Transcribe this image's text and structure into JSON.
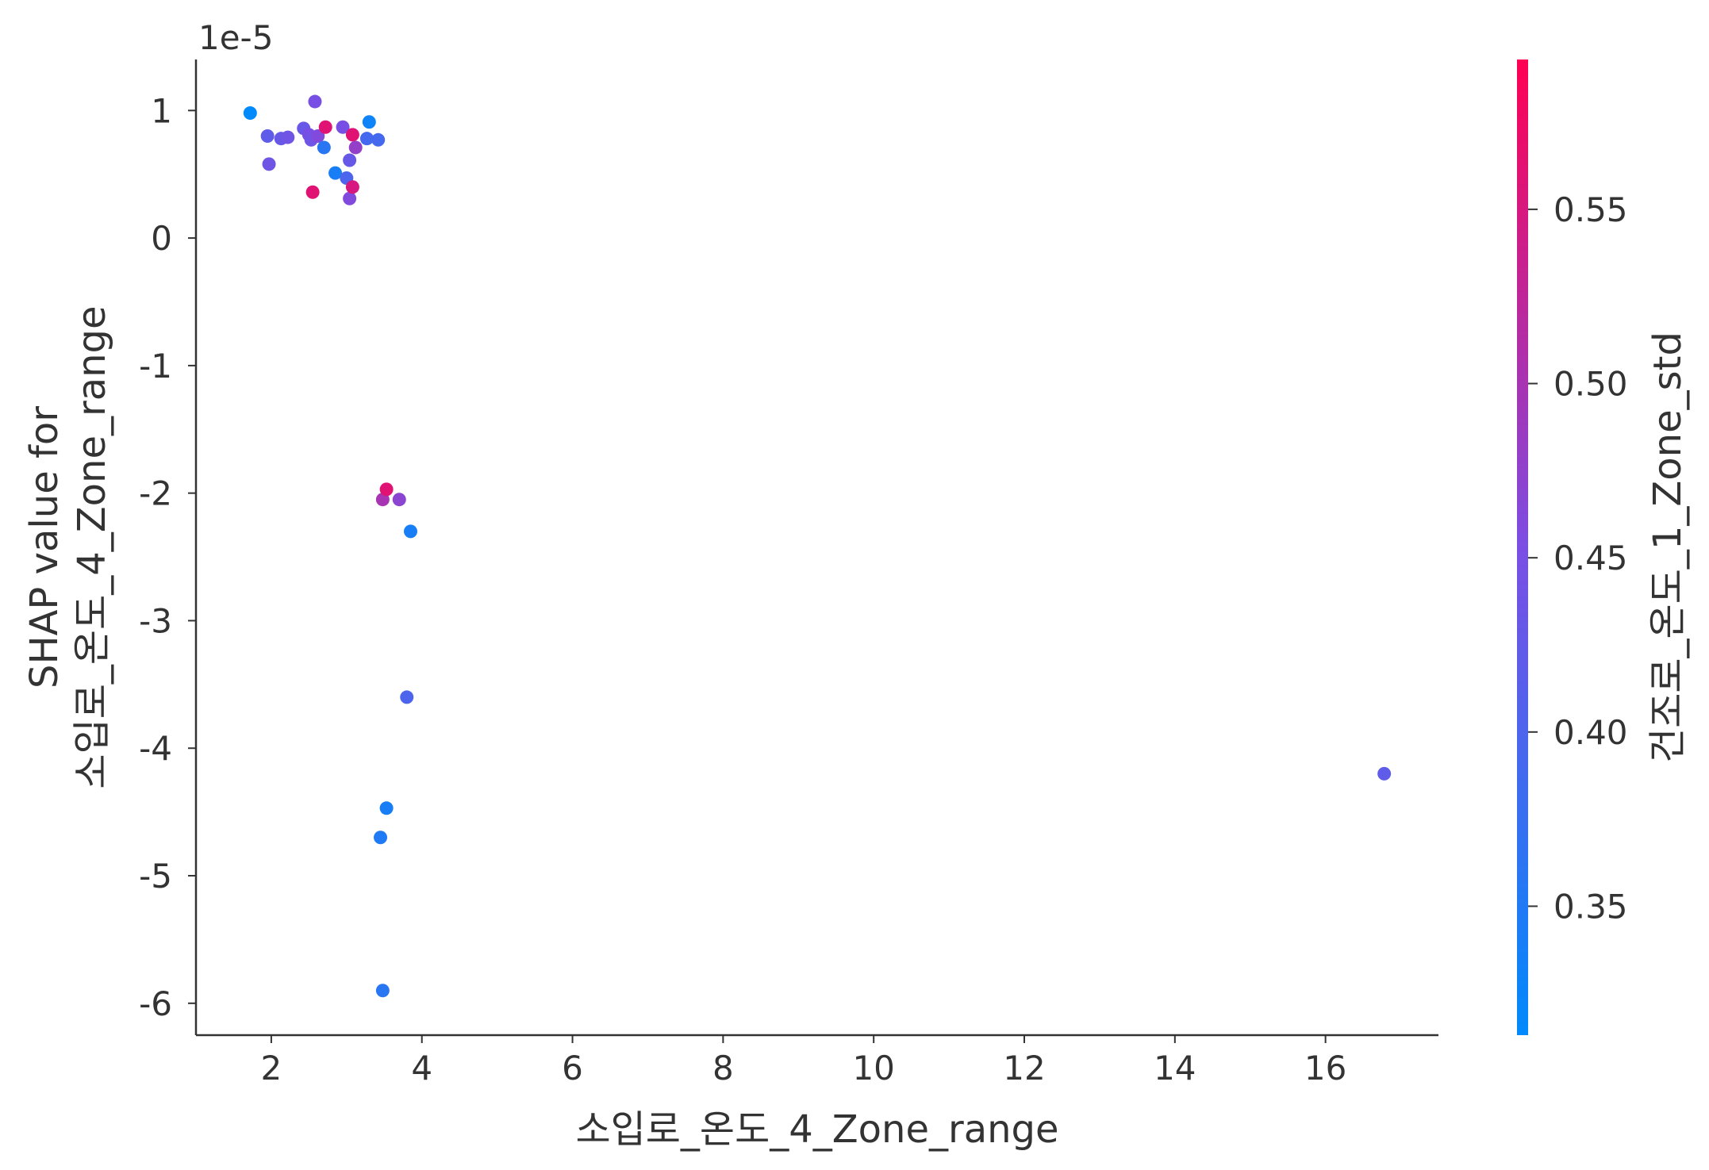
{
  "chart_data": {
    "type": "scatter",
    "xlabel": "소입로_온도_4_Zone_range",
    "ylabel_line1": "SHAP value for",
    "ylabel_line2": "소입로_온도_4_Zone_range",
    "y_offset_label": "1e-5",
    "xlim": [
      1.0,
      17.5
    ],
    "ylim": [
      -6.25,
      1.4
    ],
    "x_ticks": [
      2,
      4,
      6,
      8,
      10,
      12,
      14,
      16
    ],
    "y_ticks": [
      1,
      0,
      -1,
      -2,
      -3,
      -4,
      -5,
      -6
    ],
    "grid": false,
    "colorbar": {
      "label": "건조로_온도_1_Zone_std",
      "range": [
        0.313,
        0.593
      ],
      "ticks": [
        0.35,
        0.4,
        0.45,
        0.5,
        0.55
      ],
      "colormap": [
        "#008afb",
        "#7b4ee3",
        "#ff0052"
      ]
    },
    "points": [
      {
        "x": 1.72,
        "y": 0.98,
        "c": 0.31
      },
      {
        "x": 1.95,
        "y": 0.8,
        "c": 0.42
      },
      {
        "x": 1.97,
        "y": 0.58,
        "c": 0.44
      },
      {
        "x": 2.13,
        "y": 0.78,
        "c": 0.43
      },
      {
        "x": 2.22,
        "y": 0.79,
        "c": 0.44
      },
      {
        "x": 2.43,
        "y": 0.86,
        "c": 0.43
      },
      {
        "x": 2.5,
        "y": 0.81,
        "c": 0.45
      },
      {
        "x": 2.53,
        "y": 0.77,
        "c": 0.44
      },
      {
        "x": 2.55,
        "y": 0.36,
        "c": 0.56
      },
      {
        "x": 2.58,
        "y": 1.07,
        "c": 0.45
      },
      {
        "x": 2.62,
        "y": 0.8,
        "c": 0.46
      },
      {
        "x": 2.7,
        "y": 0.71,
        "c": 0.36
      },
      {
        "x": 2.72,
        "y": 0.87,
        "c": 0.56
      },
      {
        "x": 2.85,
        "y": 0.51,
        "c": 0.34
      },
      {
        "x": 2.95,
        "y": 0.87,
        "c": 0.45
      },
      {
        "x": 3.0,
        "y": 0.47,
        "c": 0.4
      },
      {
        "x": 3.04,
        "y": 0.61,
        "c": 0.43
      },
      {
        "x": 3.04,
        "y": 0.31,
        "c": 0.46
      },
      {
        "x": 3.08,
        "y": 0.81,
        "c": 0.56
      },
      {
        "x": 3.08,
        "y": 0.4,
        "c": 0.55
      },
      {
        "x": 3.12,
        "y": 0.71,
        "c": 0.48
      },
      {
        "x": 3.27,
        "y": 0.78,
        "c": 0.39
      },
      {
        "x": 3.3,
        "y": 0.91,
        "c": 0.33
      },
      {
        "x": 3.42,
        "y": 0.77,
        "c": 0.39
      },
      {
        "x": 3.48,
        "y": -2.05,
        "c": 0.5
      },
      {
        "x": 3.53,
        "y": -1.97,
        "c": 0.56
      },
      {
        "x": 3.7,
        "y": -2.05,
        "c": 0.47
      },
      {
        "x": 3.85,
        "y": -2.3,
        "c": 0.34
      },
      {
        "x": 3.8,
        "y": -3.6,
        "c": 0.4
      },
      {
        "x": 3.53,
        "y": -4.47,
        "c": 0.34
      },
      {
        "x": 3.45,
        "y": -4.7,
        "c": 0.35
      },
      {
        "x": 3.48,
        "y": -5.9,
        "c": 0.36
      },
      {
        "x": 16.78,
        "y": -4.2,
        "c": 0.42
      }
    ]
  }
}
